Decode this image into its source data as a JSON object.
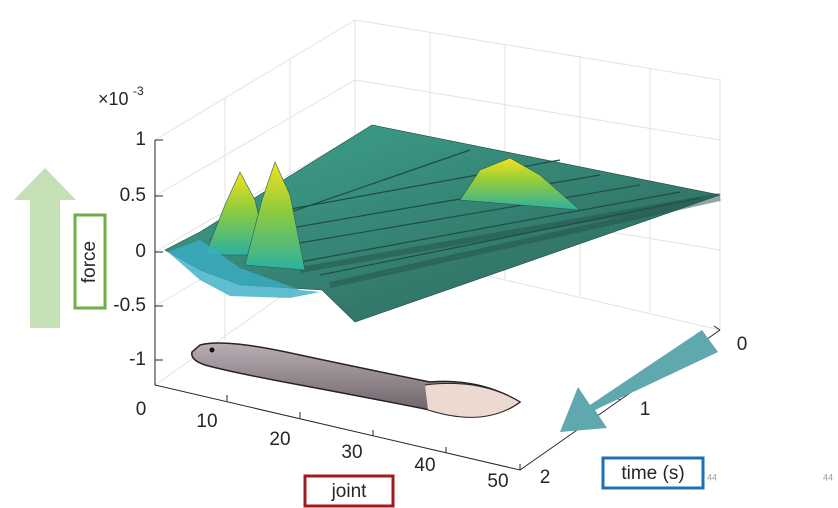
{
  "axes": {
    "z": {
      "multiplier": {
        "base": "×10",
        "exponent": "-3"
      },
      "ticks": [
        "1",
        "0.5",
        "0",
        "-0.5",
        "-1"
      ]
    },
    "joint": {
      "ticks": [
        "0",
        "10",
        "20",
        "30",
        "40",
        "50"
      ]
    },
    "time": {
      "ticks": [
        "0",
        "1",
        "2"
      ]
    }
  },
  "labels": {
    "force": "force",
    "joint": "joint",
    "time": "time (s)"
  },
  "page_numbers": [
    "44",
    "44"
  ]
}
